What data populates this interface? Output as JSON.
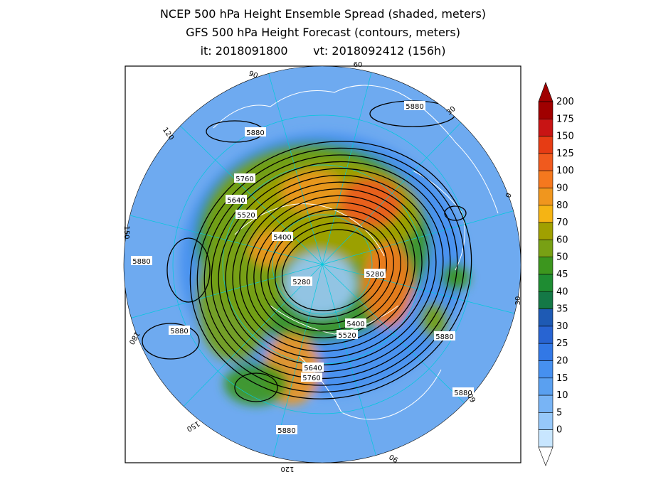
{
  "title": {
    "line1": "NCEP 500 hPa Height Ensemble Spread (shaded, meters)",
    "line2": "GFS 500 hPa Height Forecast (contours, meters)",
    "line3_init": "it: 2018091800",
    "line3_valid": "vt: 2018092412 (156h)"
  },
  "colorbar": {
    "levels": [
      "200",
      "175",
      "150",
      "125",
      "100",
      "90",
      "80",
      "70",
      "60",
      "50",
      "45",
      "40",
      "35",
      "30",
      "25",
      "20",
      "15",
      "10",
      "5",
      "0"
    ],
    "colors": [
      "#a00000",
      "#c81414",
      "#e63c14",
      "#f05a1e",
      "#f5781e",
      "#f0961e",
      "#f5b414",
      "#a0a000",
      "#78a014",
      "#3c961e",
      "#1e8c32",
      "#147846",
      "#1e5ab4",
      "#2864d2",
      "#3278e6",
      "#4690f0",
      "#5aa0f0",
      "#78b4f5",
      "#96c8fa",
      "#c8e6ff"
    ]
  },
  "contour_labels": [
    "5880",
    "5880",
    "5880",
    "5880",
    "5880",
    "5880",
    "5880",
    "5760",
    "5640",
    "5520",
    "5400",
    "5280",
    "5280",
    "5400",
    "5520",
    "5640",
    "5760"
  ],
  "grid_labels": [
    "60",
    "30",
    "0",
    "30",
    "60",
    "90",
    "120",
    "150",
    "180",
    "150",
    "120",
    "90"
  ],
  "map": {
    "ocean_color": "#6eaaf0",
    "grid_color": "#00c8dc",
    "coast_color": "#ffffff",
    "contour_color": "#000000"
  }
}
